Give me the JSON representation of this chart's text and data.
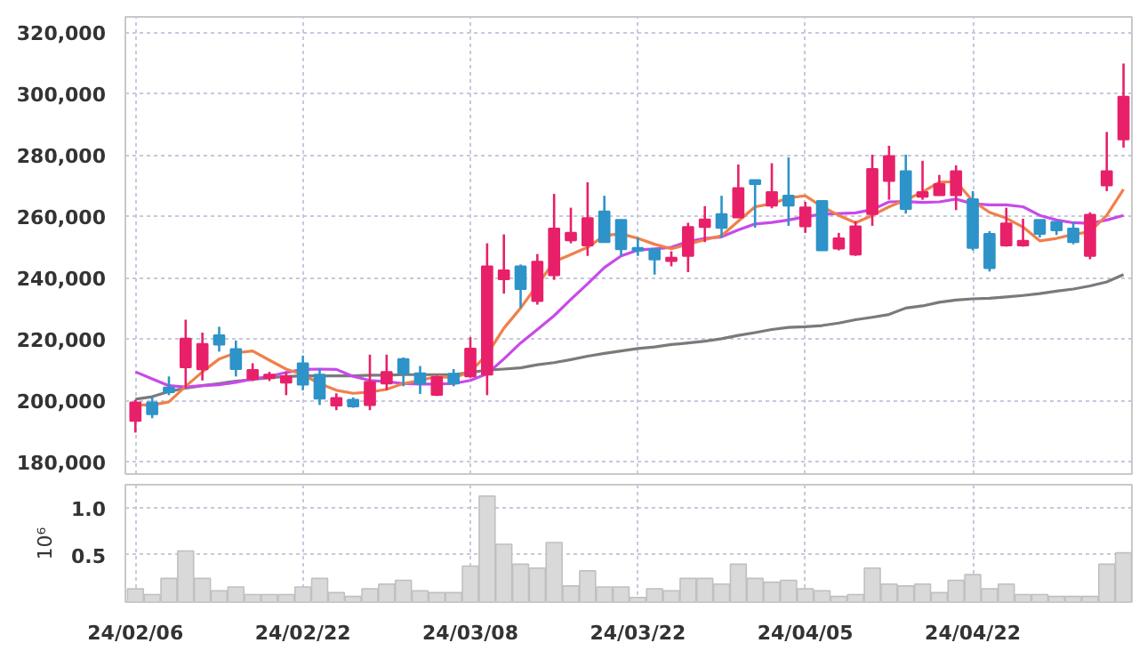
{
  "chart_data": [
    {
      "type": "candlestick",
      "categories": [
        null,
        null,
        null,
        null,
        null,
        null,
        null,
        null,
        null,
        null,
        null,
        null,
        null,
        null,
        null,
        null,
        null,
        null,
        null,
        null,
        null,
        null,
        null,
        null,
        null,
        null,
        null,
        null,
        null,
        null,
        null,
        null,
        null,
        null,
        null,
        null,
        null,
        null,
        null,
        null,
        null,
        null,
        null,
        null,
        null,
        null,
        null,
        null,
        null,
        null,
        null,
        null,
        null,
        null,
        null,
        null,
        null,
        null,
        null,
        null
      ],
      "ohlc": [
        [
          193300,
          200200,
          189500,
          199300
        ],
        [
          199300,
          201200,
          194200,
          195500
        ],
        [
          204200,
          207800,
          201700,
          202700
        ],
        [
          210800,
          226300,
          204000,
          220100
        ],
        [
          210100,
          222100,
          206500,
          218400
        ],
        [
          221200,
          224000,
          215900,
          218200
        ],
        [
          216700,
          219500,
          207800,
          210200
        ],
        [
          207000,
          212100,
          206300,
          209900
        ],
        [
          207200,
          209300,
          206300,
          208400
        ],
        [
          205800,
          209200,
          201700,
          207900
        ],
        [
          212100,
          214600,
          203300,
          205100
        ],
        [
          208400,
          210300,
          198500,
          200600
        ],
        [
          198300,
          202300,
          196800,
          200800
        ],
        [
          200200,
          201000,
          197600,
          198000
        ],
        [
          198500,
          214900,
          196800,
          206000
        ],
        [
          205500,
          214900,
          203300,
          209300
        ],
        [
          213500,
          214000,
          204600,
          208800
        ],
        [
          208800,
          211200,
          202100,
          205500
        ],
        [
          201800,
          208100,
          201400,
          207600
        ],
        [
          208700,
          210200,
          204600,
          205500
        ],
        [
          207800,
          220600,
          207400,
          216900
        ],
        [
          208400,
          251200,
          201700,
          243700
        ],
        [
          239500,
          254100,
          234800,
          242400
        ],
        [
          243700,
          244300,
          230100,
          236300
        ],
        [
          232400,
          247700,
          231200,
          245200
        ],
        [
          240800,
          267300,
          239300,
          256000
        ],
        [
          252200,
          262800,
          251200,
          254600
        ],
        [
          250500,
          271100,
          247100,
          259400
        ],
        [
          261600,
          266700,
          251600,
          251600
        ],
        [
          258800,
          258800,
          247100,
          249300
        ],
        [
          249700,
          253100,
          247100,
          248800
        ],
        [
          249300,
          249300,
          241000,
          245900
        ],
        [
          245400,
          248600,
          243700,
          246500
        ],
        [
          247100,
          257900,
          241800,
          256500
        ],
        [
          256500,
          263300,
          251600,
          259000
        ],
        [
          260700,
          266700,
          253100,
          256200
        ],
        [
          259600,
          276900,
          259600,
          269200
        ],
        [
          271800,
          271800,
          256300,
          270500
        ],
        [
          263500,
          277300,
          262600,
          267900
        ],
        [
          266700,
          279200,
          256900,
          263500
        ],
        [
          256700,
          264700,
          254600,
          262900
        ],
        [
          265000,
          265000,
          248900,
          248900
        ],
        [
          249500,
          254600,
          248900,
          252800
        ],
        [
          247500,
          258400,
          247100,
          256700
        ],
        [
          260700,
          280100,
          256900,
          275400
        ],
        [
          271500,
          283000,
          265400,
          279600
        ],
        [
          274700,
          280100,
          260900,
          262400
        ],
        [
          266400,
          278100,
          265400,
          267900
        ],
        [
          266900,
          273500,
          266700,
          270500
        ],
        [
          266900,
          276600,
          262000,
          274700
        ],
        [
          265600,
          268200,
          248900,
          249700
        ],
        [
          254300,
          255200,
          242000,
          243100
        ],
        [
          250500,
          262800,
          250100,
          257700
        ],
        [
          250500,
          259200,
          250100,
          252000
        ],
        [
          258800,
          258800,
          253100,
          254300
        ],
        [
          258200,
          258200,
          253900,
          255400
        ],
        [
          256000,
          258200,
          250900,
          251600
        ],
        [
          247100,
          261300,
          246000,
          260500
        ],
        [
          270100,
          287500,
          268200,
          274700
        ],
        [
          285100,
          309800,
          282400,
          299000
        ]
      ],
      "colors": [
        "#e8206a",
        "#2e93c9",
        "#2e93c9",
        "#e8206a",
        "#e8206a",
        "#2e93c9",
        "#2e93c9",
        "#e8206a",
        "#e8206a",
        "#e8206a",
        "#2e93c9",
        "#2e93c9",
        "#e8206a",
        "#2e93c9",
        "#e8206a",
        "#e8206a",
        "#2e93c9",
        "#2e93c9",
        "#e8206a",
        "#2e93c9",
        "#e8206a",
        "#e8206a",
        "#e8206a",
        "#2e93c9",
        "#e8206a",
        "#e8206a",
        "#e8206a",
        "#e8206a",
        "#2e93c9",
        "#2e93c9",
        "#2e93c9",
        "#2e93c9",
        "#e8206a",
        "#e8206a",
        "#e8206a",
        "#2e93c9",
        "#e8206a",
        "#2e93c9",
        "#e8206a",
        "#2e93c9",
        "#e8206a",
        "#2e93c9",
        "#e8206a",
        "#e8206a",
        "#e8206a",
        "#e8206a",
        "#2e93c9",
        "#e8206a",
        "#e8206a",
        "#e8206a",
        "#2e93c9",
        "#2e93c9",
        "#e8206a",
        "#e8206a",
        "#2e93c9",
        "#2e93c9",
        "#2e93c9",
        "#e8206a",
        "#e8206a",
        "#e8206a"
      ],
      "series": [
        {
          "type": "line",
          "color": "#7a7a7a",
          "values": [
            200400,
            201200,
            202900,
            204000,
            204800,
            205500,
            206300,
            206800,
            207400,
            207800,
            208000,
            208000,
            208000,
            208000,
            208200,
            208200,
            208400,
            208400,
            208400,
            208400,
            209100,
            209900,
            210200,
            210600,
            211600,
            212300,
            213300,
            214400,
            215300,
            216100,
            216900,
            217400,
            218200,
            218700,
            219300,
            220100,
            221200,
            222100,
            223100,
            223800,
            224000,
            224400,
            225200,
            226300,
            227100,
            228000,
            230100,
            230800,
            232000,
            232700,
            233100,
            233300,
            233700,
            234200,
            234800,
            235600,
            236300,
            237300,
            238600,
            241000
          ]
        },
        {
          "type": "line",
          "color": "#c84ae8",
          "values": [
            209300,
            207000,
            204800,
            204400,
            204800,
            205100,
            205900,
            207000,
            207800,
            209100,
            210100,
            210200,
            210100,
            207800,
            206500,
            206100,
            205500,
            205300,
            205300,
            205500,
            206500,
            208700,
            213500,
            218700,
            223100,
            227600,
            232900,
            238000,
            243300,
            247100,
            249000,
            249400,
            249900,
            251800,
            252800,
            253300,
            255600,
            257500,
            258000,
            258800,
            259900,
            260700,
            260900,
            261100,
            262200,
            264700,
            264800,
            264500,
            264700,
            265600,
            264100,
            263700,
            263700,
            263100,
            260300,
            258800,
            257900,
            257700,
            258800,
            260300
          ]
        },
        {
          "type": "line",
          "color": "#f0804a",
          "values": [
            198500,
            198500,
            199500,
            204600,
            209300,
            213500,
            215500,
            216100,
            213100,
            210200,
            208400,
            205500,
            203300,
            202300,
            202700,
            203600,
            205500,
            206500,
            207800,
            207400,
            209300,
            215000,
            223500,
            230100,
            237600,
            245200,
            247500,
            249900,
            253700,
            254300,
            252800,
            250900,
            249400,
            250900,
            252400,
            253700,
            258400,
            263100,
            264100,
            266000,
            266700,
            263100,
            260300,
            257900,
            260300,
            263100,
            265400,
            267900,
            271100,
            271300,
            265000,
            261300,
            259400,
            256500,
            252000,
            252800,
            254100,
            255000,
            260300,
            268800
          ]
        }
      ],
      "ylim": [
        176000,
        325000
      ],
      "yticks": [
        {
          "value": 180000,
          "label": "180,000"
        },
        {
          "value": 200000,
          "label": "200,000"
        },
        {
          "value": 220000,
          "label": "220,000"
        },
        {
          "value": 240000,
          "label": "240,000"
        },
        {
          "value": 260000,
          "label": "260,000"
        },
        {
          "value": 280000,
          "label": "280,000"
        },
        {
          "value": 300000,
          "label": "300,000"
        },
        {
          "value": 320000,
          "label": "320,000"
        }
      ],
      "grid": true,
      "tick_labels": "y"
    },
    {
      "type": "bar",
      "categories": [
        "24/02/06",
        null,
        null,
        null,
        null,
        null,
        null,
        null,
        null,
        null,
        "24/02/22",
        null,
        null,
        null,
        null,
        null,
        null,
        null,
        null,
        null,
        "24/03/08",
        null,
        null,
        null,
        null,
        null,
        null,
        null,
        null,
        null,
        "24/03/22",
        null,
        null,
        null,
        null,
        null,
        null,
        null,
        null,
        null,
        "24/04/05",
        null,
        null,
        null,
        null,
        null,
        null,
        null,
        null,
        null,
        "24/04/22",
        null,
        null,
        null,
        null,
        null,
        null,
        null,
        null,
        null
      ],
      "values": [
        0.14,
        0.08,
        0.25,
        0.54,
        0.25,
        0.12,
        0.16,
        0.08,
        0.08,
        0.08,
        0.16,
        0.25,
        0.1,
        0.06,
        0.14,
        0.19,
        0.23,
        0.12,
        0.1,
        0.1,
        0.38,
        1.12,
        0.61,
        0.4,
        0.36,
        0.63,
        0.17,
        0.33,
        0.16,
        0.16,
        0.05,
        0.14,
        0.12,
        0.25,
        0.25,
        0.19,
        0.4,
        0.25,
        0.21,
        0.23,
        0.14,
        0.12,
        0.06,
        0.08,
        0.36,
        0.19,
        0.17,
        0.19,
        0.1,
        0.23,
        0.29,
        0.14,
        0.19,
        0.08,
        0.08,
        0.06,
        0.06,
        0.06,
        0.4,
        0.52
      ],
      "color": "#d9d9d9",
      "ylabel": "10⁶",
      "ylim": [
        0,
        1.24
      ],
      "yticks": [
        0.5,
        {
          "value": 1,
          "label": "1.0"
        }
      ],
      "grid": true
    }
  ]
}
